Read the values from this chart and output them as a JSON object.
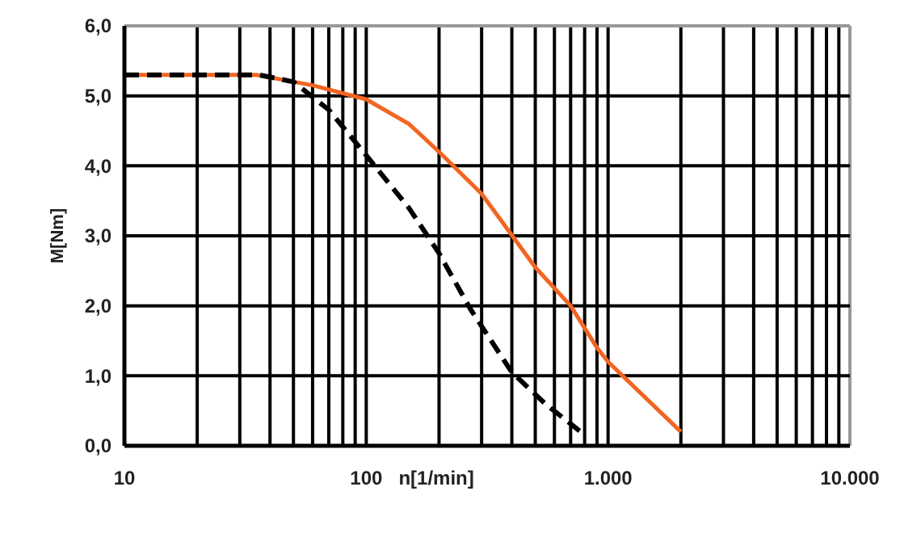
{
  "chart_data": {
    "type": "line",
    "xlabel": "n[1/min]",
    "ylabel": "M[Nm]",
    "log": "x",
    "grid": true,
    "xlim": [
      10,
      10000
    ],
    "ylim": [
      0,
      6
    ],
    "xticks": [
      {
        "value": 10,
        "label": "10"
      },
      {
        "value": 20,
        "label": null
      },
      {
        "value": 30,
        "label": null
      },
      {
        "value": 40,
        "label": null
      },
      {
        "value": 50,
        "label": null
      },
      {
        "value": 60,
        "label": null
      },
      {
        "value": 70,
        "label": null
      },
      {
        "value": 80,
        "label": null
      },
      {
        "value": 90,
        "label": null
      },
      {
        "value": 100,
        "label": "100"
      },
      {
        "value": 200,
        "label": null
      },
      {
        "value": 300,
        "label": null
      },
      {
        "value": 400,
        "label": null
      },
      {
        "value": 500,
        "label": null
      },
      {
        "value": 600,
        "label": null
      },
      {
        "value": 700,
        "label": null
      },
      {
        "value": 800,
        "label": null
      },
      {
        "value": 900,
        "label": null
      },
      {
        "value": 1000,
        "label": "1.000"
      },
      {
        "value": 2000,
        "label": null
      },
      {
        "value": 3000,
        "label": null
      },
      {
        "value": 4000,
        "label": null
      },
      {
        "value": 5000,
        "label": null
      },
      {
        "value": 6000,
        "label": null
      },
      {
        "value": 7000,
        "label": null
      },
      {
        "value": 8000,
        "label": null
      },
      {
        "value": 9000,
        "label": null
      },
      {
        "value": 10000,
        "label": "10.000"
      }
    ],
    "yticks": [
      {
        "value": 0,
        "label": "0,0"
      },
      {
        "value": 1,
        "label": "1,0"
      },
      {
        "value": 2,
        "label": "2,0"
      },
      {
        "value": 3,
        "label": "3,0"
      },
      {
        "value": 4,
        "label": "4,0"
      },
      {
        "value": 5,
        "label": "5,0"
      },
      {
        "value": 6,
        "label": "6,0"
      }
    ],
    "series": [
      {
        "color": "#f26522",
        "line_style": "solid",
        "x": [
          10,
          35,
          60,
          100,
          150,
          200,
          300,
          500,
          700,
          900,
          1000,
          2000
        ],
        "values": [
          5.3,
          5.3,
          5.15,
          4.95,
          4.6,
          4.2,
          3.6,
          2.55,
          2.0,
          1.4,
          1.2,
          0.2
        ]
      },
      {
        "color": "#000000",
        "line_style": "dashed",
        "x": [
          10,
          36,
          50,
          70,
          100,
          150,
          200,
          270,
          400,
          550,
          770
        ],
        "values": [
          5.3,
          5.3,
          5.2,
          4.8,
          4.15,
          3.4,
          2.75,
          1.95,
          1.05,
          0.6,
          0.2
        ]
      }
    ]
  }
}
